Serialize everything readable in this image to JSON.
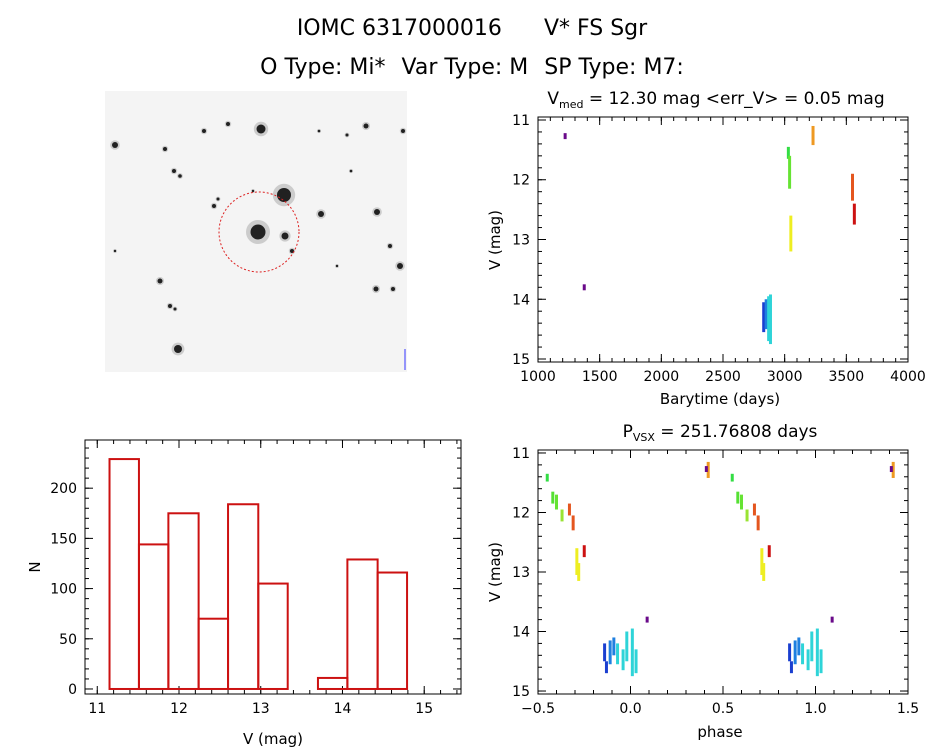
{
  "header": {
    "line1_name": "IOMC 6317000016",
    "line1_star": "V* FS Sgr",
    "o_type": "O Type: Mi*",
    "var_type": "Var Type: M",
    "sp_type": "SP Type: M7:"
  },
  "finder": {
    "corner_tl": "",
    "corner_bl": "",
    "center_label": "",
    "bottom_label": "",
    "corner_br": ""
  },
  "chart_data": [
    {
      "id": "light-curve",
      "type": "scatter",
      "title_main": "V",
      "title_sub": "med",
      "title_rest": " = 12.30 mag <err_V> = 0.05 mag",
      "xlabel": "Barytime (days)",
      "ylabel": "V (mag)",
      "xlim": [
        1000,
        4000
      ],
      "ylim": [
        15.05,
        10.95
      ],
      "xticks": [
        1000,
        1500,
        2000,
        2500,
        3000,
        3500,
        4000
      ],
      "yticks": [
        11,
        12,
        13,
        14,
        15
      ],
      "segments": [
        {
          "x": 1220,
          "y0": 11.22,
          "y1": 11.32,
          "color": "#6a0a8a"
        },
        {
          "x": 1375,
          "y0": 13.75,
          "y1": 13.85,
          "color": "#6a0a8a"
        },
        {
          "x": 2830,
          "y0": 14.05,
          "y1": 14.55,
          "color": "#1a3fd0"
        },
        {
          "x": 2850,
          "y0": 14.0,
          "y1": 14.5,
          "color": "#1e7fe0"
        },
        {
          "x": 2870,
          "y0": 13.95,
          "y1": 14.7,
          "color": "#2ed4d8"
        },
        {
          "x": 2885,
          "y0": 13.92,
          "y1": 14.75,
          "color": "#2ed4d8"
        },
        {
          "x": 3030,
          "y0": 11.45,
          "y1": 11.65,
          "color": "#33dd44"
        },
        {
          "x": 3040,
          "y0": 11.6,
          "y1": 12.15,
          "color": "#66e333"
        },
        {
          "x": 3050,
          "y0": 12.6,
          "y1": 13.2,
          "color": "#eeee22"
        },
        {
          "x": 3230,
          "y0": 11.1,
          "y1": 11.42,
          "color": "#ee9922"
        },
        {
          "x": 3550,
          "y0": 11.9,
          "y1": 12.35,
          "color": "#e4561f"
        },
        {
          "x": 3565,
          "y0": 12.4,
          "y1": 12.75,
          "color": "#cc1111"
        }
      ]
    },
    {
      "id": "histogram",
      "type": "bar",
      "xlabel": "V (mag)",
      "ylabel": "N",
      "xlim": [
        10.85,
        15.45
      ],
      "ylim": [
        -5,
        248
      ],
      "xticks": [
        11,
        12,
        13,
        14,
        15
      ],
      "yticks": [
        0,
        50,
        100,
        150,
        200
      ],
      "bin_edges": [
        11.15,
        11.51,
        11.87,
        12.24,
        12.6,
        12.97,
        13.33,
        13.7,
        14.06,
        14.43,
        14.79
      ],
      "values": [
        229,
        144,
        175,
        70,
        184,
        105,
        0,
        11,
        129,
        116
      ],
      "color": "#cc1111"
    },
    {
      "id": "phased",
      "type": "scatter",
      "title_main": "P",
      "title_sub": "VSX",
      "title_rest": " = 251.76808 days",
      "xlabel": "phase",
      "ylabel": "V (mag)",
      "xlim": [
        -0.5,
        1.5
      ],
      "ylim": [
        15.05,
        10.95
      ],
      "xticks": [
        -0.5,
        0.0,
        0.5,
        1.0,
        1.5
      ],
      "tick_labels": [
        "−0.5",
        "0.0",
        "0.5",
        "1.0",
        "1.5"
      ],
      "yticks": [
        11,
        12,
        13,
        14,
        15
      ],
      "segments": [
        {
          "x": -0.45,
          "y0": 11.35,
          "y1": 11.48,
          "color": "#33dd44"
        },
        {
          "x": -0.42,
          "y0": 11.65,
          "y1": 11.85,
          "color": "#55e033"
        },
        {
          "x": -0.4,
          "y0": 11.7,
          "y1": 11.95,
          "color": "#66e333"
        },
        {
          "x": -0.37,
          "y0": 11.95,
          "y1": 12.15,
          "color": "#99e333"
        },
        {
          "x": -0.33,
          "y0": 11.85,
          "y1": 12.05,
          "color": "#e4561f"
        },
        {
          "x": -0.31,
          "y0": 12.05,
          "y1": 12.3,
          "color": "#e4561f"
        },
        {
          "x": -0.29,
          "y0": 12.6,
          "y1": 13.05,
          "color": "#eeee22"
        },
        {
          "x": -0.28,
          "y0": 12.85,
          "y1": 13.15,
          "color": "#eeee22"
        },
        {
          "x": -0.25,
          "y0": 12.55,
          "y1": 12.75,
          "color": "#cc1111"
        },
        {
          "x": -0.14,
          "y0": 14.2,
          "y1": 14.5,
          "color": "#1a3fd0"
        },
        {
          "x": -0.13,
          "y0": 14.5,
          "y1": 14.7,
          "color": "#1a3fd0"
        },
        {
          "x": -0.11,
          "y0": 14.15,
          "y1": 14.55,
          "color": "#1e7fe0"
        },
        {
          "x": -0.09,
          "y0": 14.1,
          "y1": 14.4,
          "color": "#1e7fe0"
        },
        {
          "x": -0.07,
          "y0": 14.2,
          "y1": 14.55,
          "color": "#2ed4d8"
        },
        {
          "x": -0.04,
          "y0": 14.3,
          "y1": 14.65,
          "color": "#2ed4d8"
        },
        {
          "x": -0.02,
          "y0": 14.0,
          "y1": 14.5,
          "color": "#2ed4d8"
        },
        {
          "x": 0.01,
          "y0": 13.95,
          "y1": 14.75,
          "color": "#2ed4d8"
        },
        {
          "x": 0.03,
          "y0": 14.3,
          "y1": 14.7,
          "color": "#2ed4d8"
        },
        {
          "x": 0.09,
          "y0": 13.75,
          "y1": 13.85,
          "color": "#6a0a8a"
        },
        {
          "x": 0.42,
          "y0": 11.15,
          "y1": 11.42,
          "color": "#ee9922"
        },
        {
          "x": 0.41,
          "y0": 11.22,
          "y1": 11.32,
          "color": "#6a0a8a"
        },
        {
          "x": 0.55,
          "y0": 11.35,
          "y1": 11.48,
          "color": "#33dd44"
        },
        {
          "x": 0.58,
          "y0": 11.65,
          "y1": 11.85,
          "color": "#55e033"
        },
        {
          "x": 0.6,
          "y0": 11.7,
          "y1": 11.95,
          "color": "#66e333"
        },
        {
          "x": 0.63,
          "y0": 11.95,
          "y1": 12.15,
          "color": "#99e333"
        },
        {
          "x": 0.67,
          "y0": 11.85,
          "y1": 12.05,
          "color": "#e4561f"
        },
        {
          "x": 0.69,
          "y0": 12.05,
          "y1": 12.3,
          "color": "#e4561f"
        },
        {
          "x": 0.71,
          "y0": 12.6,
          "y1": 13.05,
          "color": "#eeee22"
        },
        {
          "x": 0.72,
          "y0": 12.85,
          "y1": 13.15,
          "color": "#eeee22"
        },
        {
          "x": 0.75,
          "y0": 12.55,
          "y1": 12.75,
          "color": "#cc1111"
        },
        {
          "x": 0.86,
          "y0": 14.2,
          "y1": 14.5,
          "color": "#1a3fd0"
        },
        {
          "x": 0.87,
          "y0": 14.5,
          "y1": 14.7,
          "color": "#1a3fd0"
        },
        {
          "x": 0.89,
          "y0": 14.15,
          "y1": 14.55,
          "color": "#1e7fe0"
        },
        {
          "x": 0.91,
          "y0": 14.1,
          "y1": 14.4,
          "color": "#1e7fe0"
        },
        {
          "x": 0.93,
          "y0": 14.2,
          "y1": 14.55,
          "color": "#2ed4d8"
        },
        {
          "x": 0.96,
          "y0": 14.3,
          "y1": 14.65,
          "color": "#2ed4d8"
        },
        {
          "x": 0.98,
          "y0": 14.0,
          "y1": 14.5,
          "color": "#2ed4d8"
        },
        {
          "x": 1.01,
          "y0": 13.95,
          "y1": 14.75,
          "color": "#2ed4d8"
        },
        {
          "x": 1.03,
          "y0": 14.3,
          "y1": 14.7,
          "color": "#2ed4d8"
        },
        {
          "x": 1.09,
          "y0": 13.75,
          "y1": 13.85,
          "color": "#6a0a8a"
        },
        {
          "x": 1.42,
          "y0": 11.15,
          "y1": 11.42,
          "color": "#ee9922"
        },
        {
          "x": 1.41,
          "y0": 11.22,
          "y1": 11.32,
          "color": "#6a0a8a"
        }
      ]
    }
  ]
}
